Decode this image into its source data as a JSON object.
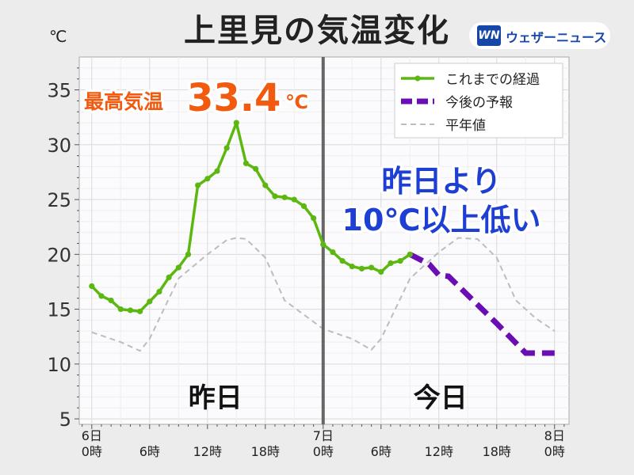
{
  "title": "上里見の気温変化",
  "unit_label": "℃",
  "logo": {
    "mark": "WN",
    "text": "ウェザーニュース"
  },
  "colors": {
    "observed": "#5cb811",
    "forecast": "#6a0db3",
    "normal": "#bdbdbd",
    "callout_fill": "#f25a10",
    "callout_text": "#1e3fd4"
  },
  "max_temp": {
    "label": "最高気温",
    "value": "33.4",
    "unit": "℃"
  },
  "note_lines": [
    "昨日より",
    "10℃以上低い"
  ],
  "day_labels": [
    "昨日",
    "今日"
  ],
  "chart_data": {
    "type": "line",
    "ylim": [
      4.5,
      38
    ],
    "yticks": [
      5,
      10,
      15,
      20,
      25,
      30,
      35
    ],
    "xlim_hours": [
      -1.3,
      49.5
    ],
    "xticks": [
      {
        "h": 0,
        "line1": "6日",
        "line2": "0時"
      },
      {
        "h": 6,
        "line1": "",
        "line2": "6時"
      },
      {
        "h": 12,
        "line1": "",
        "line2": "12時"
      },
      {
        "h": 18,
        "line1": "",
        "line2": "18時"
      },
      {
        "h": 24,
        "line1": "7日",
        "line2": "0時"
      },
      {
        "h": 30,
        "line1": "",
        "line2": "6時"
      },
      {
        "h": 36,
        "line1": "",
        "line2": "12時"
      },
      {
        "h": 42,
        "line1": "",
        "line2": "18時"
      },
      {
        "h": 48,
        "line1": "8日",
        "line2": "0時"
      }
    ],
    "day_divider_hour": 24,
    "legend_position": "top-right",
    "grid": true,
    "series": [
      {
        "name": "これまでの経過",
        "style": "solid-markers",
        "x": [
          0,
          1,
          2,
          3,
          4,
          5,
          6,
          7,
          8,
          9,
          10,
          11,
          12,
          13,
          14,
          15,
          16,
          17,
          18,
          19,
          20,
          21,
          22,
          23,
          24,
          25,
          26,
          27,
          28,
          29,
          30,
          31,
          32,
          33
        ],
        "y": [
          17.1,
          16.2,
          15.8,
          15.0,
          14.9,
          14.8,
          15.7,
          16.6,
          17.9,
          18.8,
          20.0,
          26.3,
          26.9,
          27.6,
          29.7,
          32.0,
          28.3,
          27.8,
          26.3,
          25.3,
          25.2,
          25.0,
          24.4,
          23.3,
          20.9,
          20.2,
          19.4,
          18.9,
          18.7,
          18.8,
          18.4,
          19.2,
          19.4,
          20.0
        ]
      },
      {
        "name": "今後の予報",
        "style": "dashed-bold",
        "x": [
          33,
          35,
          36,
          37,
          42,
          45,
          46,
          48
        ],
        "y": [
          20.0,
          19.1,
          18.1,
          18.0,
          13.7,
          11.0,
          11.0,
          11.0
        ]
      },
      {
        "name": "平年値",
        "style": "dashed-thin",
        "x": [
          0,
          3,
          5,
          6,
          9,
          12,
          14,
          15,
          16,
          18,
          20,
          24,
          27,
          29,
          30,
          33,
          36,
          38,
          40,
          42,
          44,
          46,
          48
        ],
        "y": [
          12.9,
          12.0,
          11.2,
          12.3,
          17.8,
          20.0,
          21.3,
          21.5,
          21.4,
          19.7,
          15.8,
          13.2,
          12.3,
          11.3,
          12.3,
          17.8,
          20.2,
          21.5,
          21.4,
          19.7,
          15.8,
          14.2,
          13.0
        ]
      }
    ]
  }
}
